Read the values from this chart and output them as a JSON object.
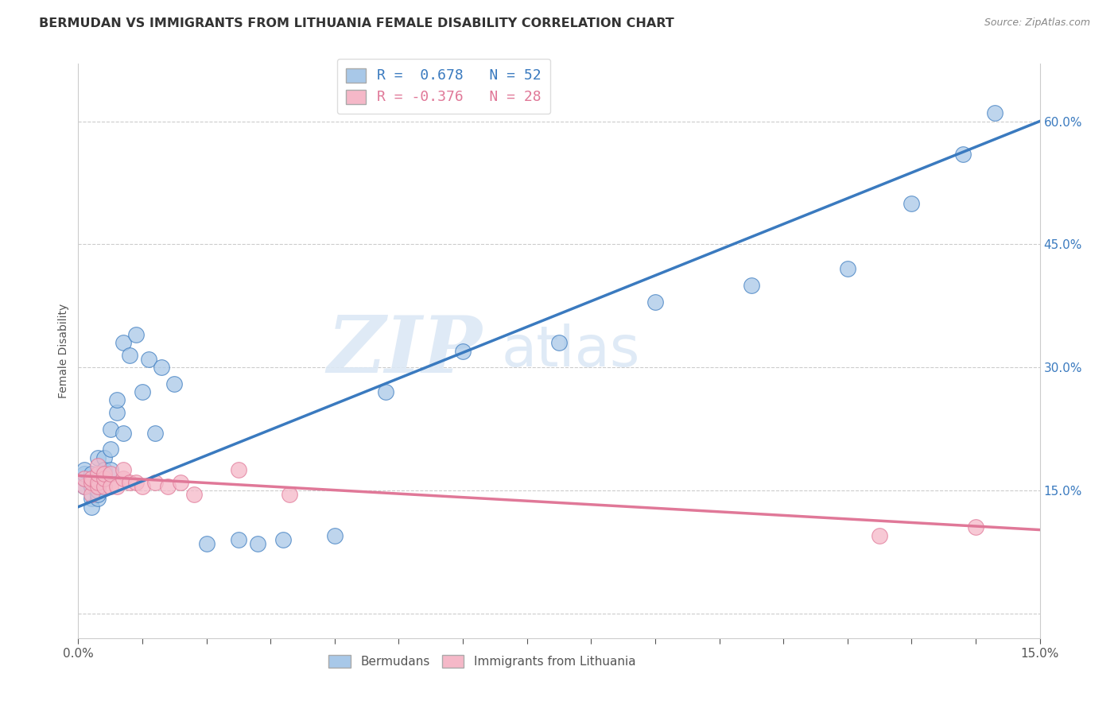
{
  "title": "BERMUDAN VS IMMIGRANTS FROM LITHUANIA FEMALE DISABILITY CORRELATION CHART",
  "source": "Source: ZipAtlas.com",
  "ylabel": "Female Disability",
  "xlim": [
    0.0,
    0.15
  ],
  "ylim": [
    -0.03,
    0.67
  ],
  "yticks_right": [
    0.0,
    0.15,
    0.3,
    0.45,
    0.6
  ],
  "ytick_labels_right": [
    "",
    "15.0%",
    "30.0%",
    "45.0%",
    "60.0%"
  ],
  "legend_r1": "R =  0.678   N = 52",
  "legend_r2": "R = -0.376   N = 28",
  "blue_color": "#a8c8e8",
  "pink_color": "#f5b8c8",
  "blue_line_color": "#3a7abf",
  "pink_line_color": "#e07898",
  "watermark_zip": "ZIP",
  "watermark_atlas": "atlas",
  "bermudan_x": [
    0.001,
    0.001,
    0.001,
    0.001,
    0.002,
    0.002,
    0.002,
    0.002,
    0.002,
    0.002,
    0.002,
    0.003,
    0.003,
    0.003,
    0.003,
    0.003,
    0.003,
    0.003,
    0.003,
    0.004,
    0.004,
    0.004,
    0.004,
    0.004,
    0.005,
    0.005,
    0.005,
    0.006,
    0.006,
    0.007,
    0.007,
    0.008,
    0.009,
    0.01,
    0.011,
    0.012,
    0.013,
    0.015,
    0.02,
    0.025,
    0.028,
    0.032,
    0.04,
    0.048,
    0.06,
    0.075,
    0.09,
    0.105,
    0.12,
    0.13,
    0.138,
    0.143
  ],
  "bermudan_y": [
    0.155,
    0.165,
    0.17,
    0.175,
    0.155,
    0.16,
    0.165,
    0.17,
    0.155,
    0.14,
    0.13,
    0.14,
    0.145,
    0.155,
    0.155,
    0.16,
    0.155,
    0.15,
    0.19,
    0.19,
    0.175,
    0.165,
    0.17,
    0.165,
    0.175,
    0.2,
    0.225,
    0.245,
    0.26,
    0.22,
    0.33,
    0.315,
    0.34,
    0.27,
    0.31,
    0.22,
    0.3,
    0.28,
    0.085,
    0.09,
    0.085,
    0.09,
    0.095,
    0.27,
    0.32,
    0.33,
    0.38,
    0.4,
    0.42,
    0.5,
    0.56,
    0.61
  ],
  "lithuania_x": [
    0.001,
    0.001,
    0.002,
    0.002,
    0.002,
    0.003,
    0.003,
    0.003,
    0.003,
    0.004,
    0.004,
    0.004,
    0.005,
    0.005,
    0.006,
    0.007,
    0.007,
    0.008,
    0.009,
    0.01,
    0.012,
    0.014,
    0.016,
    0.018,
    0.025,
    0.033,
    0.125,
    0.14
  ],
  "lithuania_y": [
    0.155,
    0.165,
    0.145,
    0.16,
    0.165,
    0.155,
    0.16,
    0.17,
    0.18,
    0.155,
    0.165,
    0.17,
    0.155,
    0.17,
    0.155,
    0.165,
    0.175,
    0.16,
    0.16,
    0.155,
    0.16,
    0.155,
    0.16,
    0.145,
    0.175,
    0.145,
    0.095,
    0.105
  ]
}
